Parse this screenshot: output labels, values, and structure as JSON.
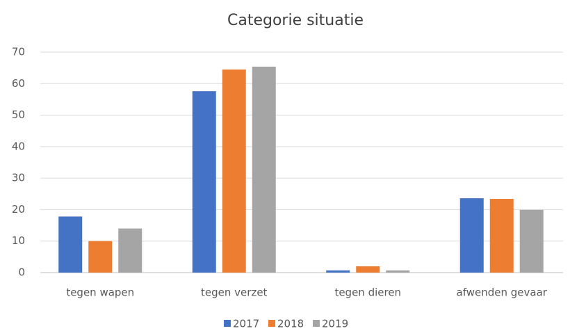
{
  "chart_data": {
    "type": "bar",
    "title": "Categorie situatie",
    "categories": [
      "tegen wapen",
      "tegen verzet",
      "tegen dieren",
      "afwenden gevaar"
    ],
    "series": [
      {
        "name": "2017",
        "color": "#4472c4",
        "values": [
          17.8,
          57.6,
          0.7,
          23.6
        ]
      },
      {
        "name": "2018",
        "color": "#ed7d31",
        "values": [
          10,
          64.5,
          2,
          23.4
        ]
      },
      {
        "name": "2019",
        "color": "#a5a5a5",
        "values": [
          14,
          65.4,
          0.7,
          19.9
        ]
      }
    ],
    "ylim": [
      0,
      70
    ],
    "yticks": [
      0,
      10,
      20,
      30,
      40,
      50,
      60,
      70
    ],
    "grid": true,
    "legend": "bottom"
  }
}
